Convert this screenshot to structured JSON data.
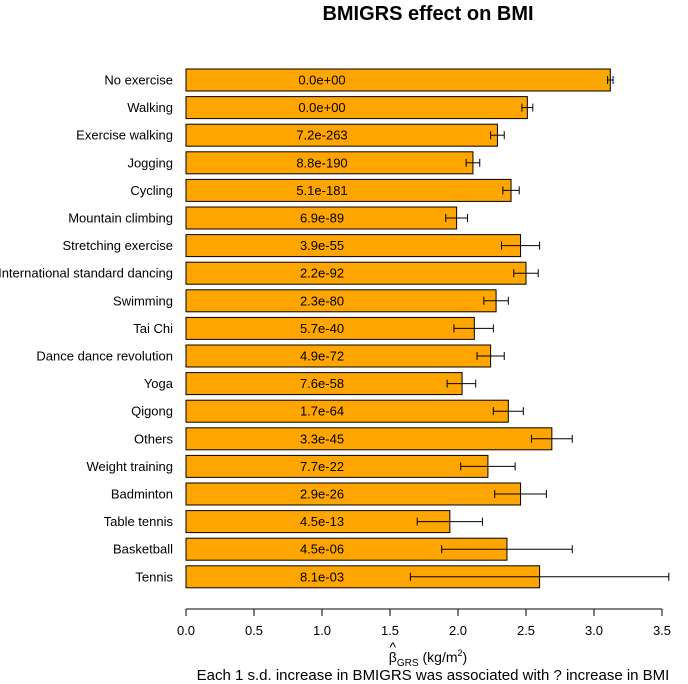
{
  "chart_data": {
    "type": "bar",
    "orientation": "horizontal",
    "title": "BMIGRS effect on BMI",
    "xlabel_symbol": "β",
    "xlabel_hat": "^",
    "xlabel_subscript": "GRS",
    "xlabel_units_prefix": "(kg/m",
    "xlabel_units_exp": "2",
    "xlabel_units_suffix": ")",
    "caption": "Each 1 s.d. increase in BMIGRS was associated with ? increase in BMI",
    "xlim": [
      0,
      3.5
    ],
    "xticks": [
      "0.0",
      "0.5",
      "1.0",
      "1.5",
      "2.0",
      "2.5",
      "3.0",
      "3.5"
    ],
    "bar_color": "#FFA500",
    "categories": [
      "No exercise",
      "Walking",
      "Exercise walking",
      "Jogging",
      "Cycling",
      "Mountain climbing",
      "Stretching exercise",
      "International standard dancing",
      "Swimming",
      "Tai Chi",
      "Dance dance revolution",
      "Yoga",
      "Qigong",
      "Others",
      "Weight training",
      "Badminton",
      "Table tennis",
      "Basketball",
      "Tennis"
    ],
    "values": [
      3.12,
      2.51,
      2.29,
      2.11,
      2.39,
      1.99,
      2.46,
      2.5,
      2.28,
      2.12,
      2.24,
      2.03,
      2.37,
      2.69,
      2.22,
      2.46,
      1.94,
      2.36,
      2.6
    ],
    "error_low": [
      3.1,
      2.47,
      2.24,
      2.06,
      2.33,
      1.91,
      2.32,
      2.41,
      2.19,
      1.97,
      2.14,
      1.92,
      2.26,
      2.54,
      2.02,
      2.27,
      1.7,
      1.88,
      1.65
    ],
    "error_high": [
      3.14,
      2.55,
      2.34,
      2.16,
      2.45,
      2.07,
      2.6,
      2.59,
      2.37,
      2.26,
      2.34,
      2.13,
      2.48,
      2.84,
      2.42,
      2.65,
      2.18,
      2.84,
      3.55
    ],
    "p_values": [
      "0.0e+00",
      "0.0e+00",
      "7.2e-263",
      "8.8e-190",
      "5.1e-181",
      "6.9e-89",
      "3.9e-55",
      "2.2e-92",
      "2.3e-80",
      "5.7e-40",
      "4.9e-72",
      "7.6e-58",
      "1.7e-64",
      "3.3e-45",
      "7.7e-22",
      "2.9e-26",
      "4.5e-13",
      "4.5e-06",
      "8.1e-03"
    ]
  }
}
